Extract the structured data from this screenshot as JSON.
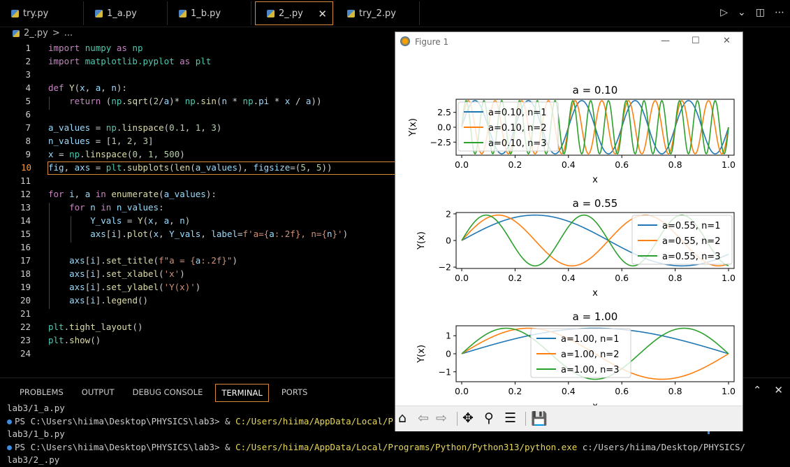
{
  "tabs": [
    {
      "label": "try.py"
    },
    {
      "label": "1_a.py"
    },
    {
      "label": "1_b.py"
    },
    {
      "label": "2_.py"
    },
    {
      "label": "try_2.py"
    }
  ],
  "breadcrumb": {
    "file": "2_.py",
    "sep": ">",
    "more": "..."
  },
  "editor": {
    "line_numbers": [
      "1",
      "2",
      "3",
      "4",
      "5",
      "6",
      "7",
      "8",
      "9",
      "10",
      "11",
      "12",
      "13",
      "14",
      "15",
      "16",
      "17",
      "18",
      "19",
      "20",
      "21",
      "22",
      "23",
      "24"
    ]
  },
  "panel": {
    "tabs": [
      "PROBLEMS",
      "OUTPUT",
      "DEBUG CONSOLE",
      "TERMINAL",
      "PORTS"
    ],
    "terminal": [
      "lab3/1_a.py",
      "PS C:\\Users\\hiima\\Desktop\\PHYSICS\\lab3> & ",
      "C:/Users/hiima/AppData/Local/Programs/Python/Python313/python.exe",
      " c:/Users/hiima/Desktop/PHYSICS/",
      "lab3/1_b.py",
      "lab3/2_.py"
    ],
    "side": [
      "hon",
      "hon"
    ]
  },
  "figure": {
    "title": "Figure 1",
    "toolbar": [
      "home-icon",
      "back-icon",
      "forward-icon",
      "pan-icon",
      "zoom-icon",
      "configure-icon",
      "save-icon"
    ]
  },
  "colors": {
    "c1": "#1f77b4",
    "c2": "#ff7f0e",
    "c3": "#2ca02c",
    "accent": "#d98a3a"
  },
  "chart_data": [
    {
      "type": "line",
      "title": "a = 0.10",
      "xlabel": "x",
      "ylabel": "Y(x)",
      "xlim": [
        0,
        1
      ],
      "ylim": [
        -4.7,
        4.7
      ],
      "xticks": [
        "0.0",
        "0.2",
        "0.4",
        "0.6",
        "0.8",
        "1.0"
      ],
      "yticks": [
        "2.5",
        "0.0",
        "−2.5"
      ],
      "legend": [
        "a=0.10, n=1",
        "a=0.10, n=2",
        "a=0.10, n=3"
      ],
      "legend_loc": "upper left",
      "function": "sqrt(2/a)*sin(n*pi*x/a)",
      "a": 0.1,
      "n": [
        1,
        2,
        3
      ]
    },
    {
      "type": "line",
      "title": "a = 0.55",
      "xlabel": "x",
      "ylabel": "Y(x)",
      "xlim": [
        0,
        1
      ],
      "ylim": [
        -2.1,
        2.1
      ],
      "xticks": [
        "0.0",
        "0.2",
        "0.4",
        "0.6",
        "0.8",
        "1.0"
      ],
      "yticks": [
        "2",
        "0",
        "−2"
      ],
      "legend": [
        "a=0.55, n=1",
        "a=0.55, n=2",
        "a=0.55, n=3"
      ],
      "legend_loc": "upper right",
      "function": "sqrt(2/a)*sin(n*pi*x/a)",
      "a": 0.55,
      "n": [
        1,
        2,
        3
      ]
    },
    {
      "type": "line",
      "title": "a = 1.00",
      "xlabel": "x",
      "ylabel": "Y(x)",
      "xlim": [
        0,
        1
      ],
      "ylim": [
        -1.55,
        1.55
      ],
      "xticks": [
        "0.0",
        "0.2",
        "0.4",
        "0.6",
        "0.8",
        "1.0"
      ],
      "yticks": [
        "1",
        "0",
        "−1"
      ],
      "legend": [
        "a=1.00, n=1",
        "a=1.00, n=2",
        "a=1.00, n=3"
      ],
      "legend_loc": "upper center",
      "function": "sqrt(2/a)*sin(n*pi*x/a)",
      "a": 1.0,
      "n": [
        1,
        2,
        3
      ]
    }
  ]
}
